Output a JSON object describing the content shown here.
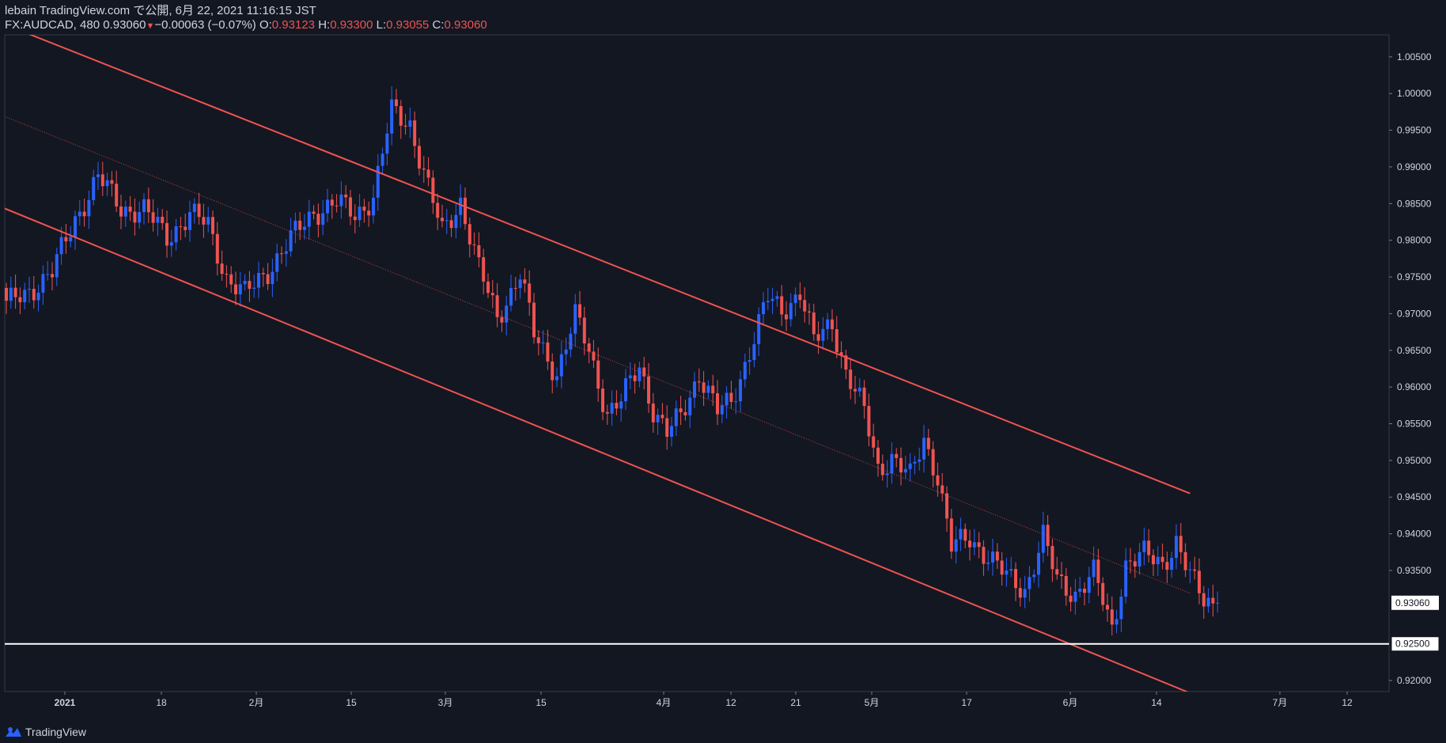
{
  "header": {
    "line1": "lebain TradingView.com で公開, 6月 22, 2021 11:16:15 JST",
    "symbol": "FX:AUDCAD, 480",
    "last": "0.93060",
    "change": "−0.00063 (−0.07%)",
    "o_label": "O:",
    "o_val": "0.93123",
    "h_label": "H:",
    "h_val": "0.93300",
    "l_label": "L:",
    "l_val": "0.93055",
    "c_label": "C:",
    "c_val": "0.93060"
  },
  "footer": {
    "brand": "TradingView"
  },
  "colors": {
    "background": "#131722",
    "up": "#2962ff",
    "down": "#ef5350",
    "channel": "#ef5350",
    "grid_text": "#d1d4dc",
    "support": "#ffffff"
  },
  "chart_data": {
    "type": "candlestick",
    "symbol": "FX:AUDCAD",
    "timeframe": "480",
    "ylim": [
      0.9185,
      1.008
    ],
    "x_ticks": [
      "2021",
      "18",
      "2月",
      "15",
      "3月",
      "15",
      "4月",
      "12",
      "21",
      "5月",
      "17",
      "6月",
      "14",
      "7月",
      "12"
    ],
    "y_ticks": [
      "1.00500",
      "1.00000",
      "0.99500",
      "0.99000",
      "0.98500",
      "0.98000",
      "0.97500",
      "0.97000",
      "0.96500",
      "0.96000",
      "0.95500",
      "0.95000",
      "0.94500",
      "0.94000",
      "0.93500",
      "0.92000"
    ],
    "last_price_label": "0.93060",
    "support_label": "0.92500",
    "support_level": 0.925,
    "channel_upper": {
      "from": [
        -10,
        1.0118
      ],
      "to": [
        258,
        0.9455
      ]
    },
    "channel_lower": {
      "from": [
        -10,
        0.9868
      ],
      "to": [
        258,
        0.9183
      ]
    },
    "channel_mid": {
      "from": [
        -10,
        0.9993
      ],
      "to": [
        258,
        0.9319
      ]
    },
    "anchors": [
      [
        0,
        0.971
      ],
      [
        10,
        0.9755
      ],
      [
        15,
        0.983
      ],
      [
        20,
        0.9885
      ],
      [
        25,
        0.9845
      ],
      [
        30,
        0.984
      ],
      [
        35,
        0.9805
      ],
      [
        40,
        0.9835
      ],
      [
        44,
        0.982
      ],
      [
        48,
        0.975
      ],
      [
        52,
        0.9725
      ],
      [
        57,
        0.976
      ],
      [
        62,
        0.98
      ],
      [
        67,
        0.984
      ],
      [
        72,
        0.985
      ],
      [
        76,
        0.9835
      ],
      [
        80,
        0.986
      ],
      [
        84,
        0.9975
      ],
      [
        88,
        0.996
      ],
      [
        92,
        0.987
      ],
      [
        95,
        0.981
      ],
      [
        99,
        0.9855
      ],
      [
        103,
        0.976
      ],
      [
        107,
        0.9695
      ],
      [
        112,
        0.9755
      ],
      [
        115,
        0.967
      ],
      [
        120,
        0.962
      ],
      [
        124,
        0.9695
      ],
      [
        127,
        0.965
      ],
      [
        131,
        0.9565
      ],
      [
        134,
        0.958
      ],
      [
        138,
        0.963
      ],
      [
        141,
        0.957
      ],
      [
        144,
        0.9535
      ],
      [
        147,
        0.956
      ],
      [
        151,
        0.962
      ],
      [
        155,
        0.9565
      ],
      [
        158,
        0.958
      ],
      [
        162,
        0.965
      ],
      [
        166,
        0.972
      ],
      [
        169,
        0.9705
      ],
      [
        173,
        0.973
      ],
      [
        176,
        0.966
      ],
      [
        180,
        0.969
      ],
      [
        183,
        0.962
      ],
      [
        187,
        0.9565
      ],
      [
        190,
        0.949
      ],
      [
        193,
        0.9505
      ],
      [
        197,
        0.9475
      ],
      [
        200,
        0.953
      ],
      [
        203,
        0.948
      ],
      [
        206,
        0.938
      ],
      [
        210,
        0.9395
      ],
      [
        214,
        0.937
      ],
      [
        218,
        0.934
      ],
      [
        222,
        0.9325
      ],
      [
        226,
        0.9395
      ],
      [
        229,
        0.9335
      ],
      [
        233,
        0.932
      ],
      [
        237,
        0.9345
      ],
      [
        241,
        0.927
      ],
      [
        244,
        0.936
      ],
      [
        248,
        0.937
      ],
      [
        252,
        0.936
      ],
      [
        255,
        0.939
      ],
      [
        258,
        0.934
      ],
      [
        261,
        0.931
      ],
      [
        264,
        0.9306
      ]
    ]
  }
}
